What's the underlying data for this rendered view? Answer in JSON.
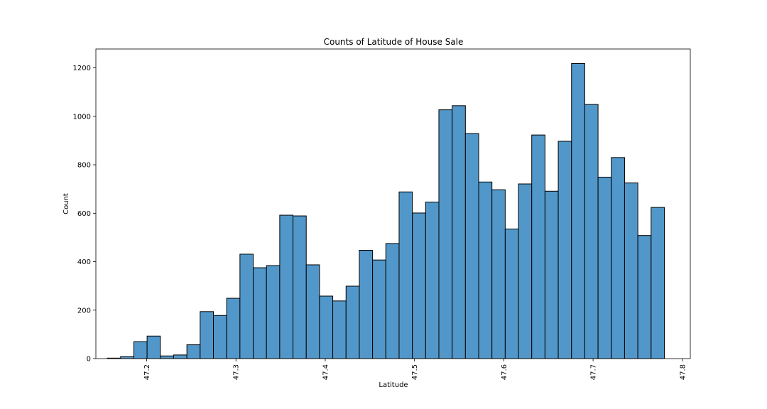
{
  "chart_data": {
    "type": "bar",
    "title": "Counts of Latitude of House Sale",
    "xlabel": "Latitude",
    "ylabel": "Count",
    "xlim": [
      47.1431,
      47.8089
    ],
    "ylim": [
      0,
      1278
    ],
    "x_ticks": [
      47.2,
      47.3,
      47.4,
      47.5,
      47.6,
      47.7,
      47.8
    ],
    "x_tick_labels": [
      "47.2",
      "47.3",
      "47.4",
      "47.5",
      "47.6",
      "47.7",
      "47.8"
    ],
    "y_ticks": [
      0,
      200,
      400,
      600,
      800,
      1000,
      1200
    ],
    "y_tick_labels": [
      "0",
      "200",
      "400",
      "600",
      "800",
      "1000",
      "1200"
    ],
    "grid": false,
    "bar_color": "#5297c9",
    "bin_start": 47.1559,
    "bin_width": 0.014856,
    "bin_edges": [
      47.1559,
      47.17076,
      47.18561,
      47.20047,
      47.21532,
      47.23018,
      47.24504,
      47.25989,
      47.27475,
      47.2896,
      47.30446,
      47.31932,
      47.33417,
      47.34903,
      47.36388,
      47.37874,
      47.3936,
      47.40845,
      47.42331,
      47.43816,
      47.45302,
      47.46788,
      47.48273,
      47.49759,
      47.51244,
      47.5273,
      47.54216,
      47.55701,
      47.57187,
      47.58672,
      47.60158,
      47.61644,
      47.63129,
      47.64615,
      47.661,
      47.67586,
      47.69072,
      47.70557,
      47.72043,
      47.73528,
      47.75014,
      47.765,
      47.77985
    ],
    "counts": [
      2,
      8,
      70,
      93,
      11,
      15,
      57,
      194,
      178,
      249,
      431,
      375,
      384,
      592,
      589,
      387,
      258,
      238,
      299,
      447,
      407,
      475,
      688,
      601,
      646,
      1027,
      1044,
      929,
      729,
      697,
      535,
      721,
      923,
      691,
      897,
      1218,
      1049,
      749,
      830,
      725,
      508,
      624
    ]
  }
}
